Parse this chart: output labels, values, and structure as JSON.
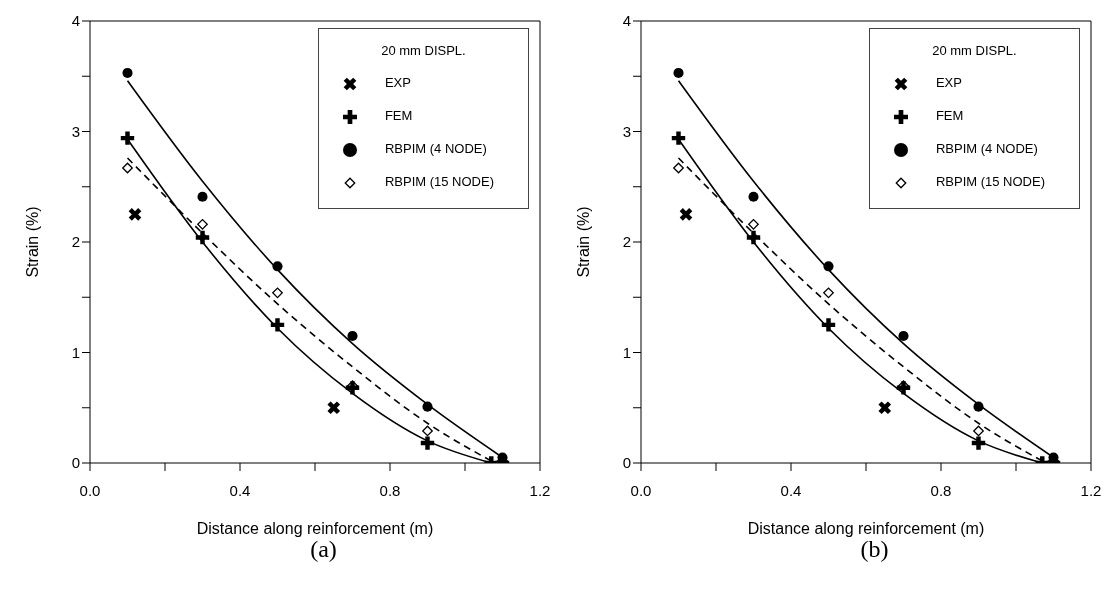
{
  "chart_data": [
    {
      "type": "scatter",
      "xlabel": "Distance along reinforcement (m)",
      "ylabel": "Strain (%)",
      "legend_title": "20 mm DISPL.",
      "legend": "top right",
      "annotations": [
        "(a)"
      ],
      "xlim": [
        0,
        1.2
      ],
      "ylim": [
        0,
        4
      ],
      "xticks": [
        {
          "value": 0,
          "label": "0.0"
        },
        {
          "value": 0.2,
          "label": null
        },
        {
          "value": 0.4,
          "label": "0.4"
        },
        {
          "value": 0.6,
          "label": null
        },
        {
          "value": 0.8,
          "label": "0.8"
        },
        {
          "value": 1.0,
          "label": null
        },
        {
          "value": 1.2,
          "label": "1.2"
        }
      ],
      "yticks": [
        0,
        {
          "value": 0.5,
          "label": null
        },
        1,
        {
          "value": 1.5,
          "label": null
        },
        2,
        {
          "value": 2.5,
          "label": null
        },
        3,
        {
          "value": 3.5,
          "label": null
        },
        4
      ],
      "series": [
        {
          "type": "line",
          "color": "#000000",
          "line_style": "solid",
          "marker": "none",
          "x": [
            0.1,
            0.3,
            0.5,
            0.7,
            0.9,
            1.1
          ],
          "values": [
            3.46,
            2.55,
            1.75,
            1.08,
            0.53,
            0.05
          ]
        },
        {
          "type": "line",
          "color": "#000000",
          "line_style": "solid",
          "marker": "none",
          "x": [
            0.1,
            0.3,
            0.5,
            0.7,
            0.9,
            1.07
          ],
          "values": [
            2.93,
            2.0,
            1.22,
            0.63,
            0.2,
            0
          ]
        },
        {
          "type": "line",
          "color": "#000000",
          "line_style": "dashed",
          "marker": "none",
          "x": [
            0.1,
            0.3,
            0.5,
            0.7,
            0.9,
            1.08
          ],
          "values": [
            2.76,
            2.08,
            1.44,
            0.87,
            0.36,
            0
          ]
        },
        {
          "name": "EXP",
          "color": "#000000",
          "marker": "x",
          "x": [
            0.12,
            0.65
          ],
          "values": [
            2.25,
            0.5
          ]
        },
        {
          "name": "FEM",
          "color": "#000000",
          "marker": "cross",
          "x": [
            0.1,
            0.3,
            0.5,
            0.7,
            0.9,
            1.07,
            1.1
          ],
          "values": [
            2.94,
            2.04,
            1.25,
            0.68,
            0.18,
            0,
            0
          ]
        },
        {
          "name": "RBPIM (4 NODE)",
          "color": "#000000",
          "marker": "circle",
          "x": [
            0.1,
            0.3,
            0.5,
            0.7,
            0.9,
            1.1
          ],
          "values": [
            3.53,
            2.41,
            1.78,
            1.15,
            0.51,
            0.05
          ]
        },
        {
          "name": "RBPIM (15 NODE)",
          "color": "#000000",
          "marker": "diamond",
          "x": [
            0.1,
            0.3,
            0.5,
            0.7,
            0.9,
            1.1
          ],
          "values": [
            2.67,
            2.16,
            1.54,
            0.7,
            0.29,
            0.02
          ]
        }
      ]
    },
    {
      "type": "scatter",
      "xlabel": "Distance along reinforcement (m)",
      "ylabel": "Strain (%)",
      "legend_title": "20 mm DISPL.",
      "legend": "top right",
      "annotations": [
        "(b)"
      ],
      "xlim": [
        0,
        1.2
      ],
      "ylim": [
        0,
        4
      ],
      "xticks": [
        {
          "value": 0,
          "label": "0.0"
        },
        {
          "value": 0.2,
          "label": null
        },
        {
          "value": 0.4,
          "label": "0.4"
        },
        {
          "value": 0.6,
          "label": null
        },
        {
          "value": 0.8,
          "label": "0.8"
        },
        {
          "value": 1.0,
          "label": null
        },
        {
          "value": 1.2,
          "label": "1.2"
        }
      ],
      "yticks": [
        0,
        {
          "value": 0.5,
          "label": null
        },
        1,
        {
          "value": 1.5,
          "label": null
        },
        2,
        {
          "value": 2.5,
          "label": null
        },
        3,
        {
          "value": 3.5,
          "label": null
        },
        4
      ],
      "series": [
        {
          "type": "line",
          "color": "#000000",
          "line_style": "solid",
          "marker": "none",
          "x": [
            0.1,
            0.3,
            0.5,
            0.7,
            0.9,
            1.1
          ],
          "values": [
            3.46,
            2.55,
            1.75,
            1.08,
            0.53,
            0.05
          ]
        },
        {
          "type": "line",
          "color": "#000000",
          "line_style": "solid",
          "marker": "none",
          "x": [
            0.1,
            0.3,
            0.5,
            0.7,
            0.9,
            1.07
          ],
          "values": [
            2.93,
            2.0,
            1.22,
            0.63,
            0.2,
            0
          ]
        },
        {
          "type": "line",
          "color": "#000000",
          "line_style": "dashed",
          "marker": "none",
          "x": [
            0.1,
            0.3,
            0.5,
            0.7,
            0.9,
            1.08
          ],
          "values": [
            2.76,
            2.08,
            1.44,
            0.87,
            0.36,
            0
          ]
        },
        {
          "name": "EXP",
          "color": "#000000",
          "marker": "x",
          "x": [
            0.12,
            0.65
          ],
          "values": [
            2.25,
            0.5
          ]
        },
        {
          "name": "FEM",
          "color": "#000000",
          "marker": "cross",
          "x": [
            0.1,
            0.3,
            0.5,
            0.7,
            0.9,
            1.07,
            1.1
          ],
          "values": [
            2.94,
            2.04,
            1.25,
            0.68,
            0.18,
            0,
            0
          ]
        },
        {
          "name": "RBPIM (4 NODE)",
          "color": "#000000",
          "marker": "circle",
          "x": [
            0.1,
            0.3,
            0.5,
            0.7,
            0.9,
            1.1
          ],
          "values": [
            3.53,
            2.41,
            1.78,
            1.15,
            0.51,
            0.05
          ]
        },
        {
          "name": "RBPIM (15 NODE)",
          "color": "#000000",
          "marker": "diamond",
          "x": [
            0.1,
            0.3,
            0.5,
            0.7,
            0.9,
            1.1
          ],
          "values": [
            2.67,
            2.16,
            1.54,
            0.7,
            0.29,
            0.02
          ]
        }
      ]
    }
  ]
}
